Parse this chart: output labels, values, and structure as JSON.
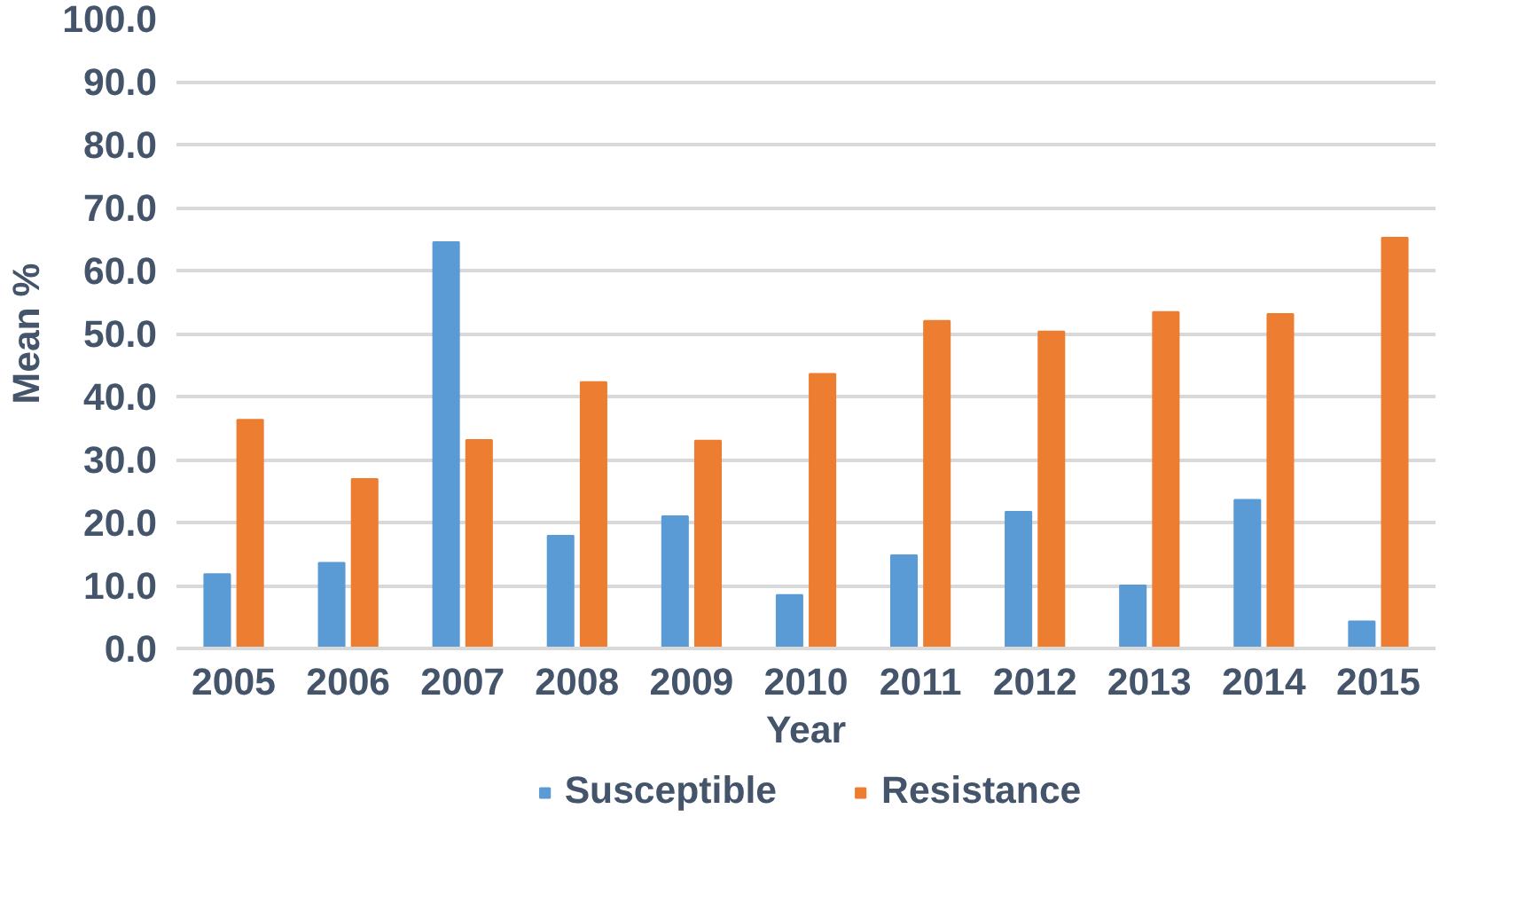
{
  "chart_data": {
    "type": "bar",
    "xlabel": "Year",
    "ylabel": "Mean %",
    "categories": [
      "2005",
      "2006",
      "2007",
      "2008",
      "2009",
      "2010",
      "2011",
      "2012",
      "2013",
      "2014",
      "2015"
    ],
    "series": [
      {
        "name": "Susceptible",
        "color": "#5b9bd5",
        "values": [
          11.8,
          13.6,
          64.5,
          17.9,
          21.0,
          8.5,
          14.8,
          21.7,
          10.0,
          23.6,
          4.3
        ]
      },
      {
        "name": "Resistance",
        "color": "#ed7d31",
        "values": [
          36.3,
          26.9,
          33.1,
          42.3,
          33.0,
          43.6,
          52.0,
          50.3,
          53.4,
          53.1,
          65.2
        ]
      }
    ],
    "ylim": [
      0,
      100
    ],
    "yticks": [
      {
        "value": 0,
        "label": "0.0"
      },
      {
        "value": 10,
        "label": "10.0"
      },
      {
        "value": 20,
        "label": "20.0"
      },
      {
        "value": 30,
        "label": "30.0"
      },
      {
        "value": 40,
        "label": "40.0"
      },
      {
        "value": 50,
        "label": "50.0"
      },
      {
        "value": 60,
        "label": "60.0"
      },
      {
        "value": 70,
        "label": "70.0"
      },
      {
        "value": 80,
        "label": "80.0"
      },
      {
        "value": 90,
        "label": "90.0"
      },
      {
        "value": 100,
        "label": "100.0"
      }
    ],
    "grid": "y",
    "legend": "bottom"
  }
}
